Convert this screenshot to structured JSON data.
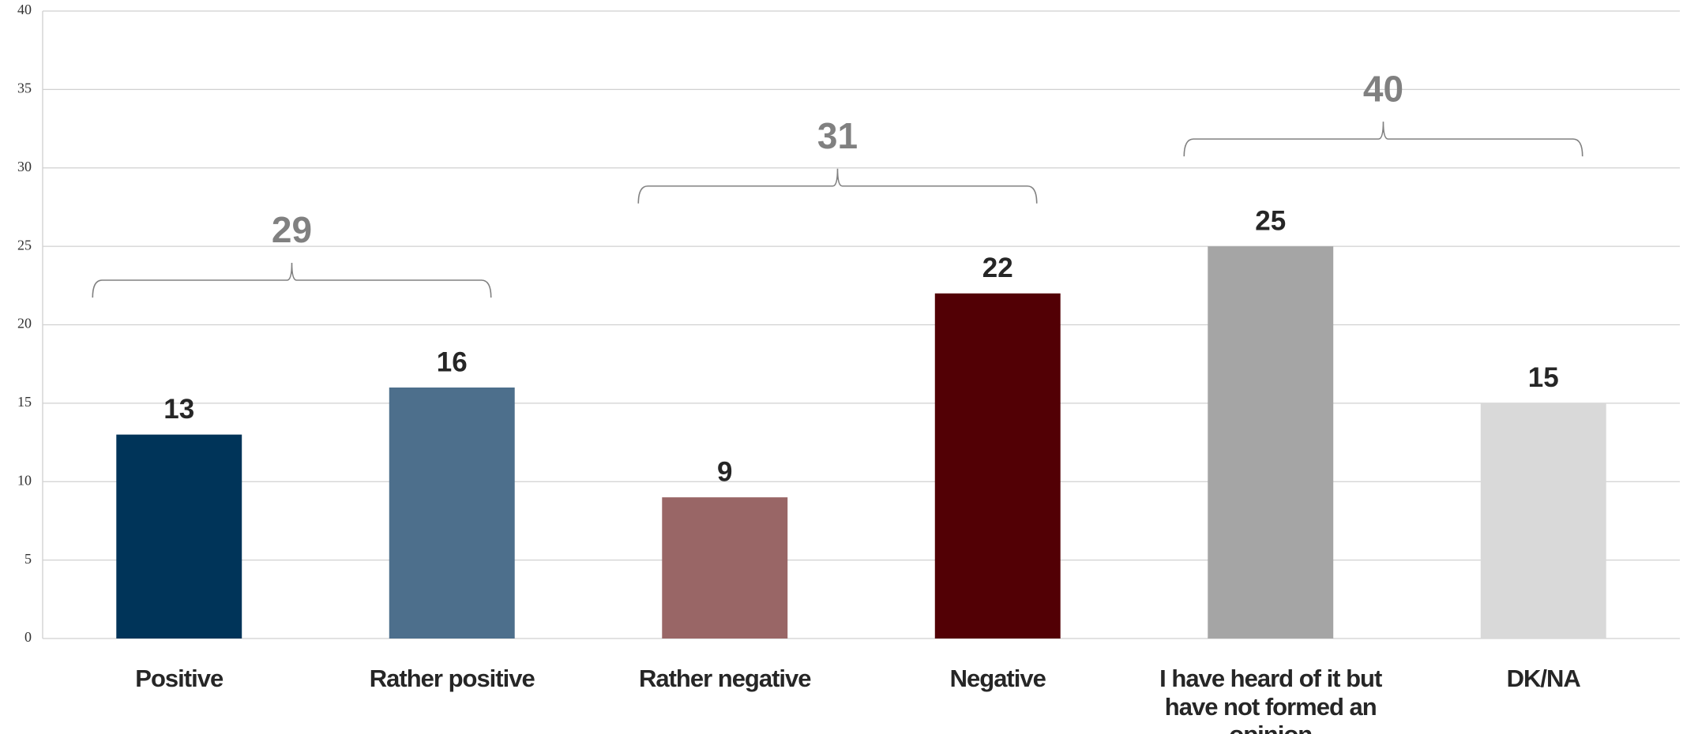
{
  "chart_data": {
    "type": "bar",
    "categories": [
      "Positive",
      "Rather positive",
      "Rather negative",
      "Negative",
      "I have heard of it but have not formed an opinion",
      "DK/NA"
    ],
    "values": [
      13,
      16,
      9,
      22,
      25,
      15
    ],
    "colors": [
      "#003459",
      "#4d6f8c",
      "#996666",
      "#520005",
      "#a5a5a5",
      "#d9d9d9"
    ],
    "ylim": [
      0,
      40
    ],
    "yticks": [
      0,
      5,
      10,
      15,
      20,
      25,
      30,
      35,
      40
    ],
    "grid": true,
    "groups": [
      {
        "categories": [
          "Positive",
          "Rather positive"
        ],
        "value": 29
      },
      {
        "categories": [
          "Rather negative",
          "Negative"
        ],
        "value": 31
      },
      {
        "categories": [
          "I have heard of it but have not formed an opinion",
          "DK/NA"
        ],
        "value": 40
      }
    ]
  }
}
